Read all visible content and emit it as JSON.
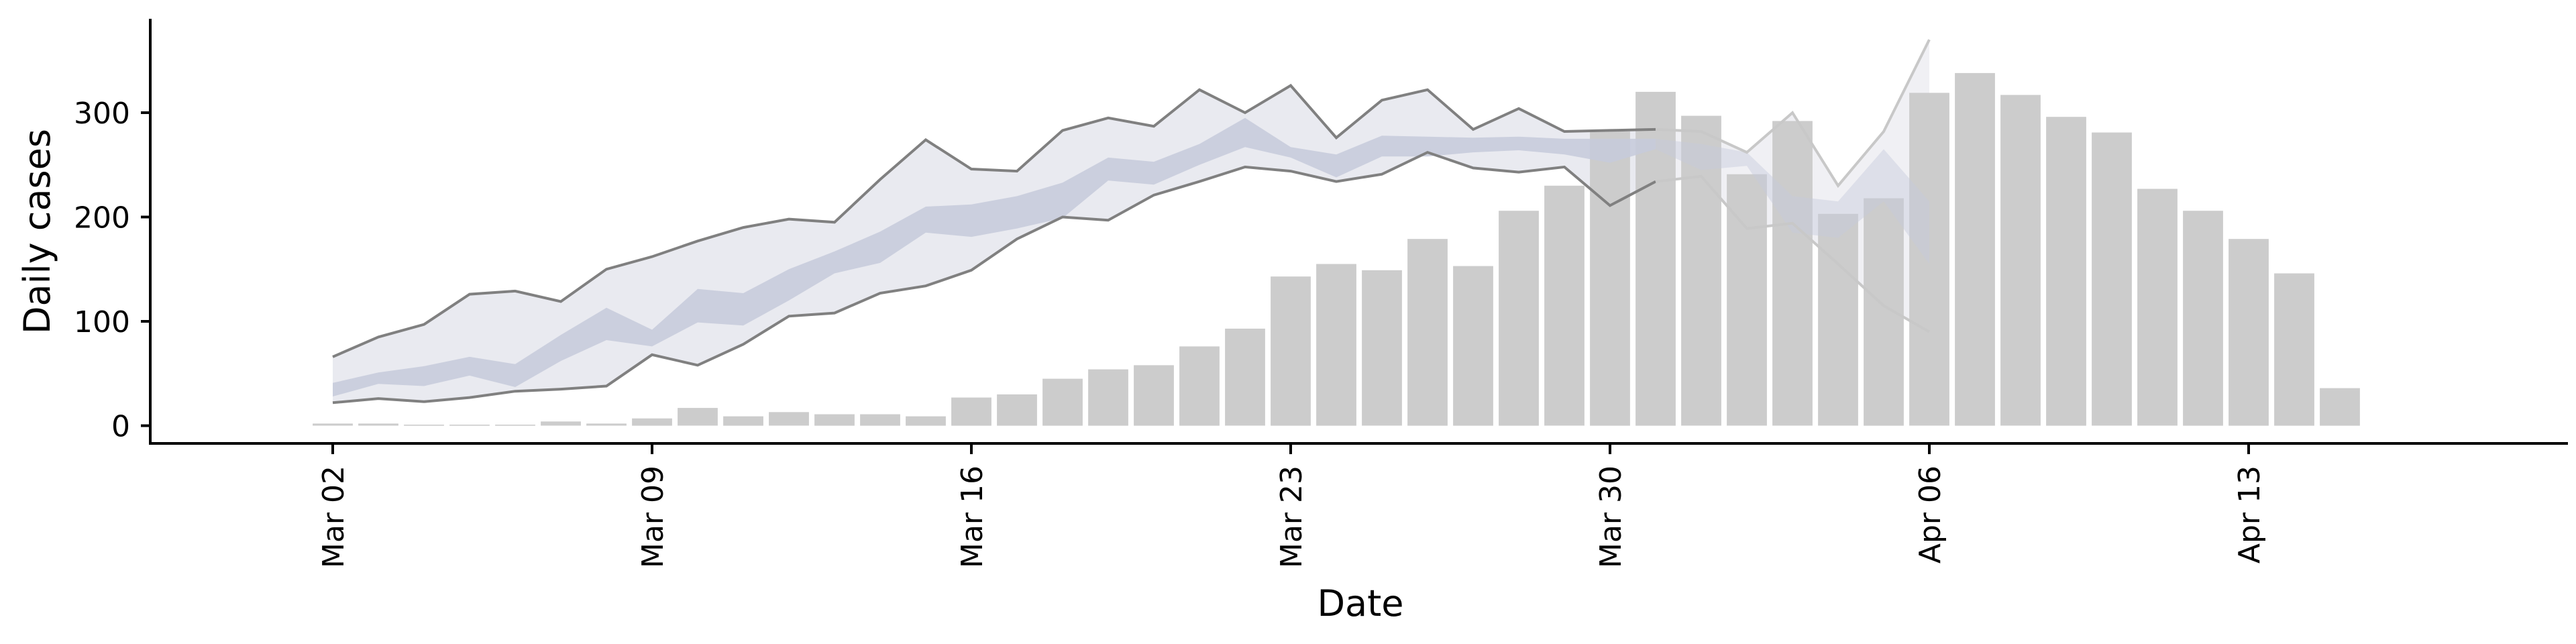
{
  "chart_data": {
    "type": "bar",
    "title": "",
    "xlabel": "Date",
    "ylabel": "Daily cases",
    "ylim": [
      -17,
      390
    ],
    "yticks": [
      0,
      100,
      200,
      300
    ],
    "x_ticks": [
      {
        "date": "2020-03-02",
        "label": "Mar 02"
      },
      {
        "date": "2020-03-09",
        "label": "Mar 09"
      },
      {
        "date": "2020-03-16",
        "label": "Mar 16"
      },
      {
        "date": "2020-03-23",
        "label": "Mar 23"
      },
      {
        "date": "2020-03-30",
        "label": "Mar 30"
      },
      {
        "date": "2020-04-06",
        "label": "Apr 06"
      },
      {
        "date": "2020-04-13",
        "label": "Apr 13"
      }
    ],
    "xlim": [
      "2020-02-27",
      "2020-04-20"
    ],
    "grid": false,
    "colors": {
      "bars": "#cccccc",
      "outer_band": "#e9eaf0",
      "inner_band": "#c5cadb",
      "lines": "#808080",
      "forecast_lines": "#c8c8c8",
      "forecast_band": "#f0f0f4"
    },
    "bars": {
      "dates": [
        "2020-03-02",
        "2020-03-03",
        "2020-03-04",
        "2020-03-05",
        "2020-03-06",
        "2020-03-07",
        "2020-03-08",
        "2020-03-09",
        "2020-03-10",
        "2020-03-11",
        "2020-03-12",
        "2020-03-13",
        "2020-03-14",
        "2020-03-15",
        "2020-03-16",
        "2020-03-17",
        "2020-03-18",
        "2020-03-19",
        "2020-03-20",
        "2020-03-21",
        "2020-03-22",
        "2020-03-23",
        "2020-03-24",
        "2020-03-25",
        "2020-03-26",
        "2020-03-27",
        "2020-03-28",
        "2020-03-29",
        "2020-03-30",
        "2020-03-31",
        "2020-04-01",
        "2020-04-02",
        "2020-04-03",
        "2020-04-04",
        "2020-04-05",
        "2020-04-06",
        "2020-04-07",
        "2020-04-08",
        "2020-04-09",
        "2020-04-10",
        "2020-04-11",
        "2020-04-12",
        "2020-04-13",
        "2020-04-14",
        "2020-04-15"
      ],
      "values": [
        2,
        2,
        1,
        1,
        1,
        4,
        2,
        7,
        17,
        9,
        13,
        11,
        11,
        9,
        27,
        30,
        45,
        54,
        58,
        76,
        93,
        143,
        155,
        149,
        179,
        153,
        206,
        230,
        282,
        320,
        297,
        241,
        292,
        203,
        218,
        319,
        338,
        317,
        296,
        281,
        227,
        206,
        179,
        146,
        36
      ]
    },
    "estimate": {
      "dates": [
        "2020-03-02",
        "2020-03-03",
        "2020-03-04",
        "2020-03-05",
        "2020-03-06",
        "2020-03-07",
        "2020-03-08",
        "2020-03-09",
        "2020-03-10",
        "2020-03-11",
        "2020-03-12",
        "2020-03-13",
        "2020-03-14",
        "2020-03-15",
        "2020-03-16",
        "2020-03-17",
        "2020-03-18",
        "2020-03-19",
        "2020-03-20",
        "2020-03-21",
        "2020-03-22",
        "2020-03-23",
        "2020-03-24",
        "2020-03-25",
        "2020-03-26",
        "2020-03-27",
        "2020-03-28",
        "2020-03-29",
        "2020-03-30",
        "2020-03-31",
        "2020-04-01",
        "2020-04-02",
        "2020-04-03",
        "2020-04-04",
        "2020-04-05",
        "2020-04-06"
      ],
      "upper_90": [
        66,
        85,
        97,
        126,
        129,
        119,
        150,
        162,
        177,
        190,
        198,
        195,
        236,
        274,
        246,
        244,
        283,
        295,
        287,
        322,
        300,
        326,
        276,
        312,
        322,
        284,
        304,
        282,
        283,
        284,
        282,
        262,
        300,
        230,
        282,
        370
      ],
      "lower_90": [
        22,
        26,
        23,
        27,
        33,
        35,
        38,
        68,
        58,
        78,
        105,
        108,
        127,
        134,
        149,
        179,
        200,
        197,
        221,
        234,
        248,
        244,
        234,
        241,
        262,
        247,
        243,
        248,
        211,
        234,
        239,
        189,
        194,
        155,
        115,
        90
      ],
      "upper_50": [
        41,
        51,
        57,
        66,
        59,
        87,
        113,
        92,
        131,
        127,
        150,
        167,
        186,
        210,
        212,
        220,
        233,
        257,
        253,
        270,
        295,
        267,
        260,
        278,
        277,
        276,
        277,
        275,
        275,
        275,
        270,
        262,
        220,
        215,
        265,
        215
      ],
      "lower_50": [
        28,
        40,
        38,
        48,
        37,
        62,
        82,
        76,
        99,
        96,
        120,
        146,
        156,
        185,
        181,
        189,
        199,
        235,
        231,
        250,
        267,
        257,
        238,
        258,
        258,
        262,
        264,
        260,
        252,
        265,
        245,
        249,
        185,
        180,
        215,
        155
      ]
    },
    "forecast_start": "2020-03-31"
  }
}
